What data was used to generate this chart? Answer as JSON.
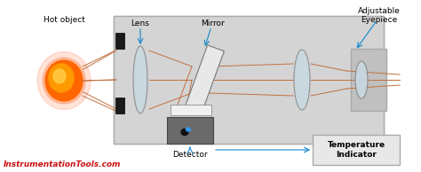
{
  "bg_color": "#ffffff",
  "box_color": "#d4d4d4",
  "box_edge": "#aaaaaa",
  "label_lens": "Lens",
  "label_mirror": "Mirror",
  "label_detector": "Detector",
  "label_hot": "Hot object",
  "label_eyepiece": "Adjustable\nEyepiece",
  "label_temp": "Temperature\nIndicator",
  "label_website": "InstrumentationTools.com",
  "website_color": "#cc1111",
  "arrow_color": "#1188cc",
  "ray_color": "#c07040"
}
